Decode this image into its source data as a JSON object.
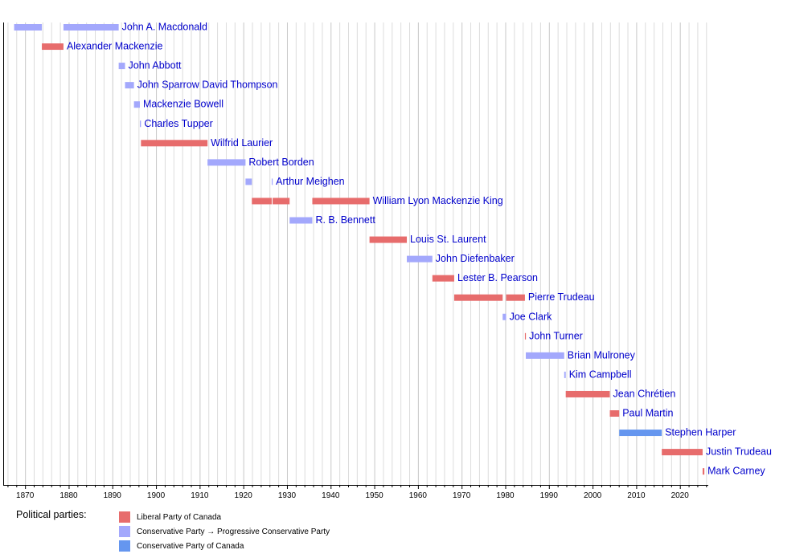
{
  "chart_data": {
    "type": "timeline",
    "x_range": [
      1865,
      2026.5
    ],
    "major_ticks": [
      1870,
      1880,
      1890,
      1900,
      1910,
      1920,
      1930,
      1940,
      1950,
      1960,
      1970,
      1980,
      1990,
      2000,
      2010,
      2020
    ],
    "minor_tick_step": 2,
    "grid": true,
    "parties": [
      {
        "key": "liberal",
        "name": "Liberal Party of Canada",
        "color": "#e76c6c"
      },
      {
        "key": "pc",
        "name": "Conservative Party → Progressive Conservative Party",
        "color": "#a3a8fc"
      },
      {
        "key": "cpc",
        "name": "Conservative Party of Canada",
        "color": "#6596ef"
      }
    ],
    "prime_ministers": [
      {
        "name": "John A. Macdonald",
        "party": "pc",
        "terms": [
          [
            1867.5,
            1873.85
          ],
          [
            1878.8,
            1891.45
          ]
        ]
      },
      {
        "name": "Alexander Mackenzie",
        "party": "liberal",
        "terms": [
          [
            1873.85,
            1878.8
          ]
        ]
      },
      {
        "name": "John Abbott",
        "party": "pc",
        "terms": [
          [
            1891.45,
            1892.9
          ]
        ]
      },
      {
        "name": "John Sparrow David Thompson",
        "party": "pc",
        "terms": [
          [
            1892.9,
            1894.95
          ]
        ]
      },
      {
        "name": "Mackenzie Bowell",
        "party": "pc",
        "terms": [
          [
            1894.95,
            1896.3
          ]
        ]
      },
      {
        "name": "Charles Tupper",
        "party": "pc",
        "terms": [
          [
            1896.3,
            1896.55
          ]
        ]
      },
      {
        "name": "Wilfrid Laurier",
        "party": "liberal",
        "terms": [
          [
            1896.55,
            1911.8
          ]
        ]
      },
      {
        "name": "Robert Borden",
        "party": "pc",
        "terms": [
          [
            1911.8,
            1920.5
          ]
        ]
      },
      {
        "name": "Arthur Meighen",
        "party": "pc",
        "terms": [
          [
            1920.5,
            1921.95
          ],
          [
            1926.5,
            1926.7
          ]
        ]
      },
      {
        "name": "William Lyon Mackenzie King",
        "party": "liberal",
        "terms": [
          [
            1921.95,
            1926.5
          ],
          [
            1926.7,
            1930.6
          ],
          [
            1935.8,
            1948.9
          ]
        ]
      },
      {
        "name": "R. B. Bennett",
        "party": "pc",
        "terms": [
          [
            1930.6,
            1935.8
          ]
        ]
      },
      {
        "name": "Louis St. Laurent",
        "party": "liberal",
        "terms": [
          [
            1948.9,
            1957.45
          ]
        ]
      },
      {
        "name": "John Diefenbaker",
        "party": "pc",
        "terms": [
          [
            1957.45,
            1963.3
          ]
        ]
      },
      {
        "name": "Lester B. Pearson",
        "party": "liberal",
        "terms": [
          [
            1963.3,
            1968.3
          ]
        ]
      },
      {
        "name": "Pierre Trudeau",
        "party": "liberal",
        "terms": [
          [
            1968.3,
            1979.4
          ],
          [
            1980.2,
            1984.5
          ]
        ]
      },
      {
        "name": "Joe Clark",
        "party": "pc",
        "terms": [
          [
            1979.4,
            1980.2
          ]
        ]
      },
      {
        "name": "John Turner",
        "party": "liberal",
        "terms": [
          [
            1984.5,
            1984.7
          ]
        ]
      },
      {
        "name": "Brian Mulroney",
        "party": "pc",
        "terms": [
          [
            1984.7,
            1993.5
          ]
        ]
      },
      {
        "name": "Kim Campbell",
        "party": "pc",
        "terms": [
          [
            1993.5,
            1993.85
          ]
        ]
      },
      {
        "name": "Jean Chrétien",
        "party": "liberal",
        "terms": [
          [
            1993.85,
            2003.95
          ]
        ]
      },
      {
        "name": "Paul Martin",
        "party": "liberal",
        "terms": [
          [
            2003.95,
            2006.1
          ]
        ]
      },
      {
        "name": "Stephen Harper",
        "party": "cpc",
        "terms": [
          [
            2006.1,
            2015.85
          ]
        ]
      },
      {
        "name": "Justin Trudeau",
        "party": "liberal",
        "terms": [
          [
            2015.85,
            2025.2
          ]
        ]
      },
      {
        "name": "Mark Carney",
        "party": "liberal",
        "terms": [
          [
            2025.2,
            2025.6
          ]
        ]
      }
    ]
  },
  "legend": {
    "title": "Political parties:"
  }
}
